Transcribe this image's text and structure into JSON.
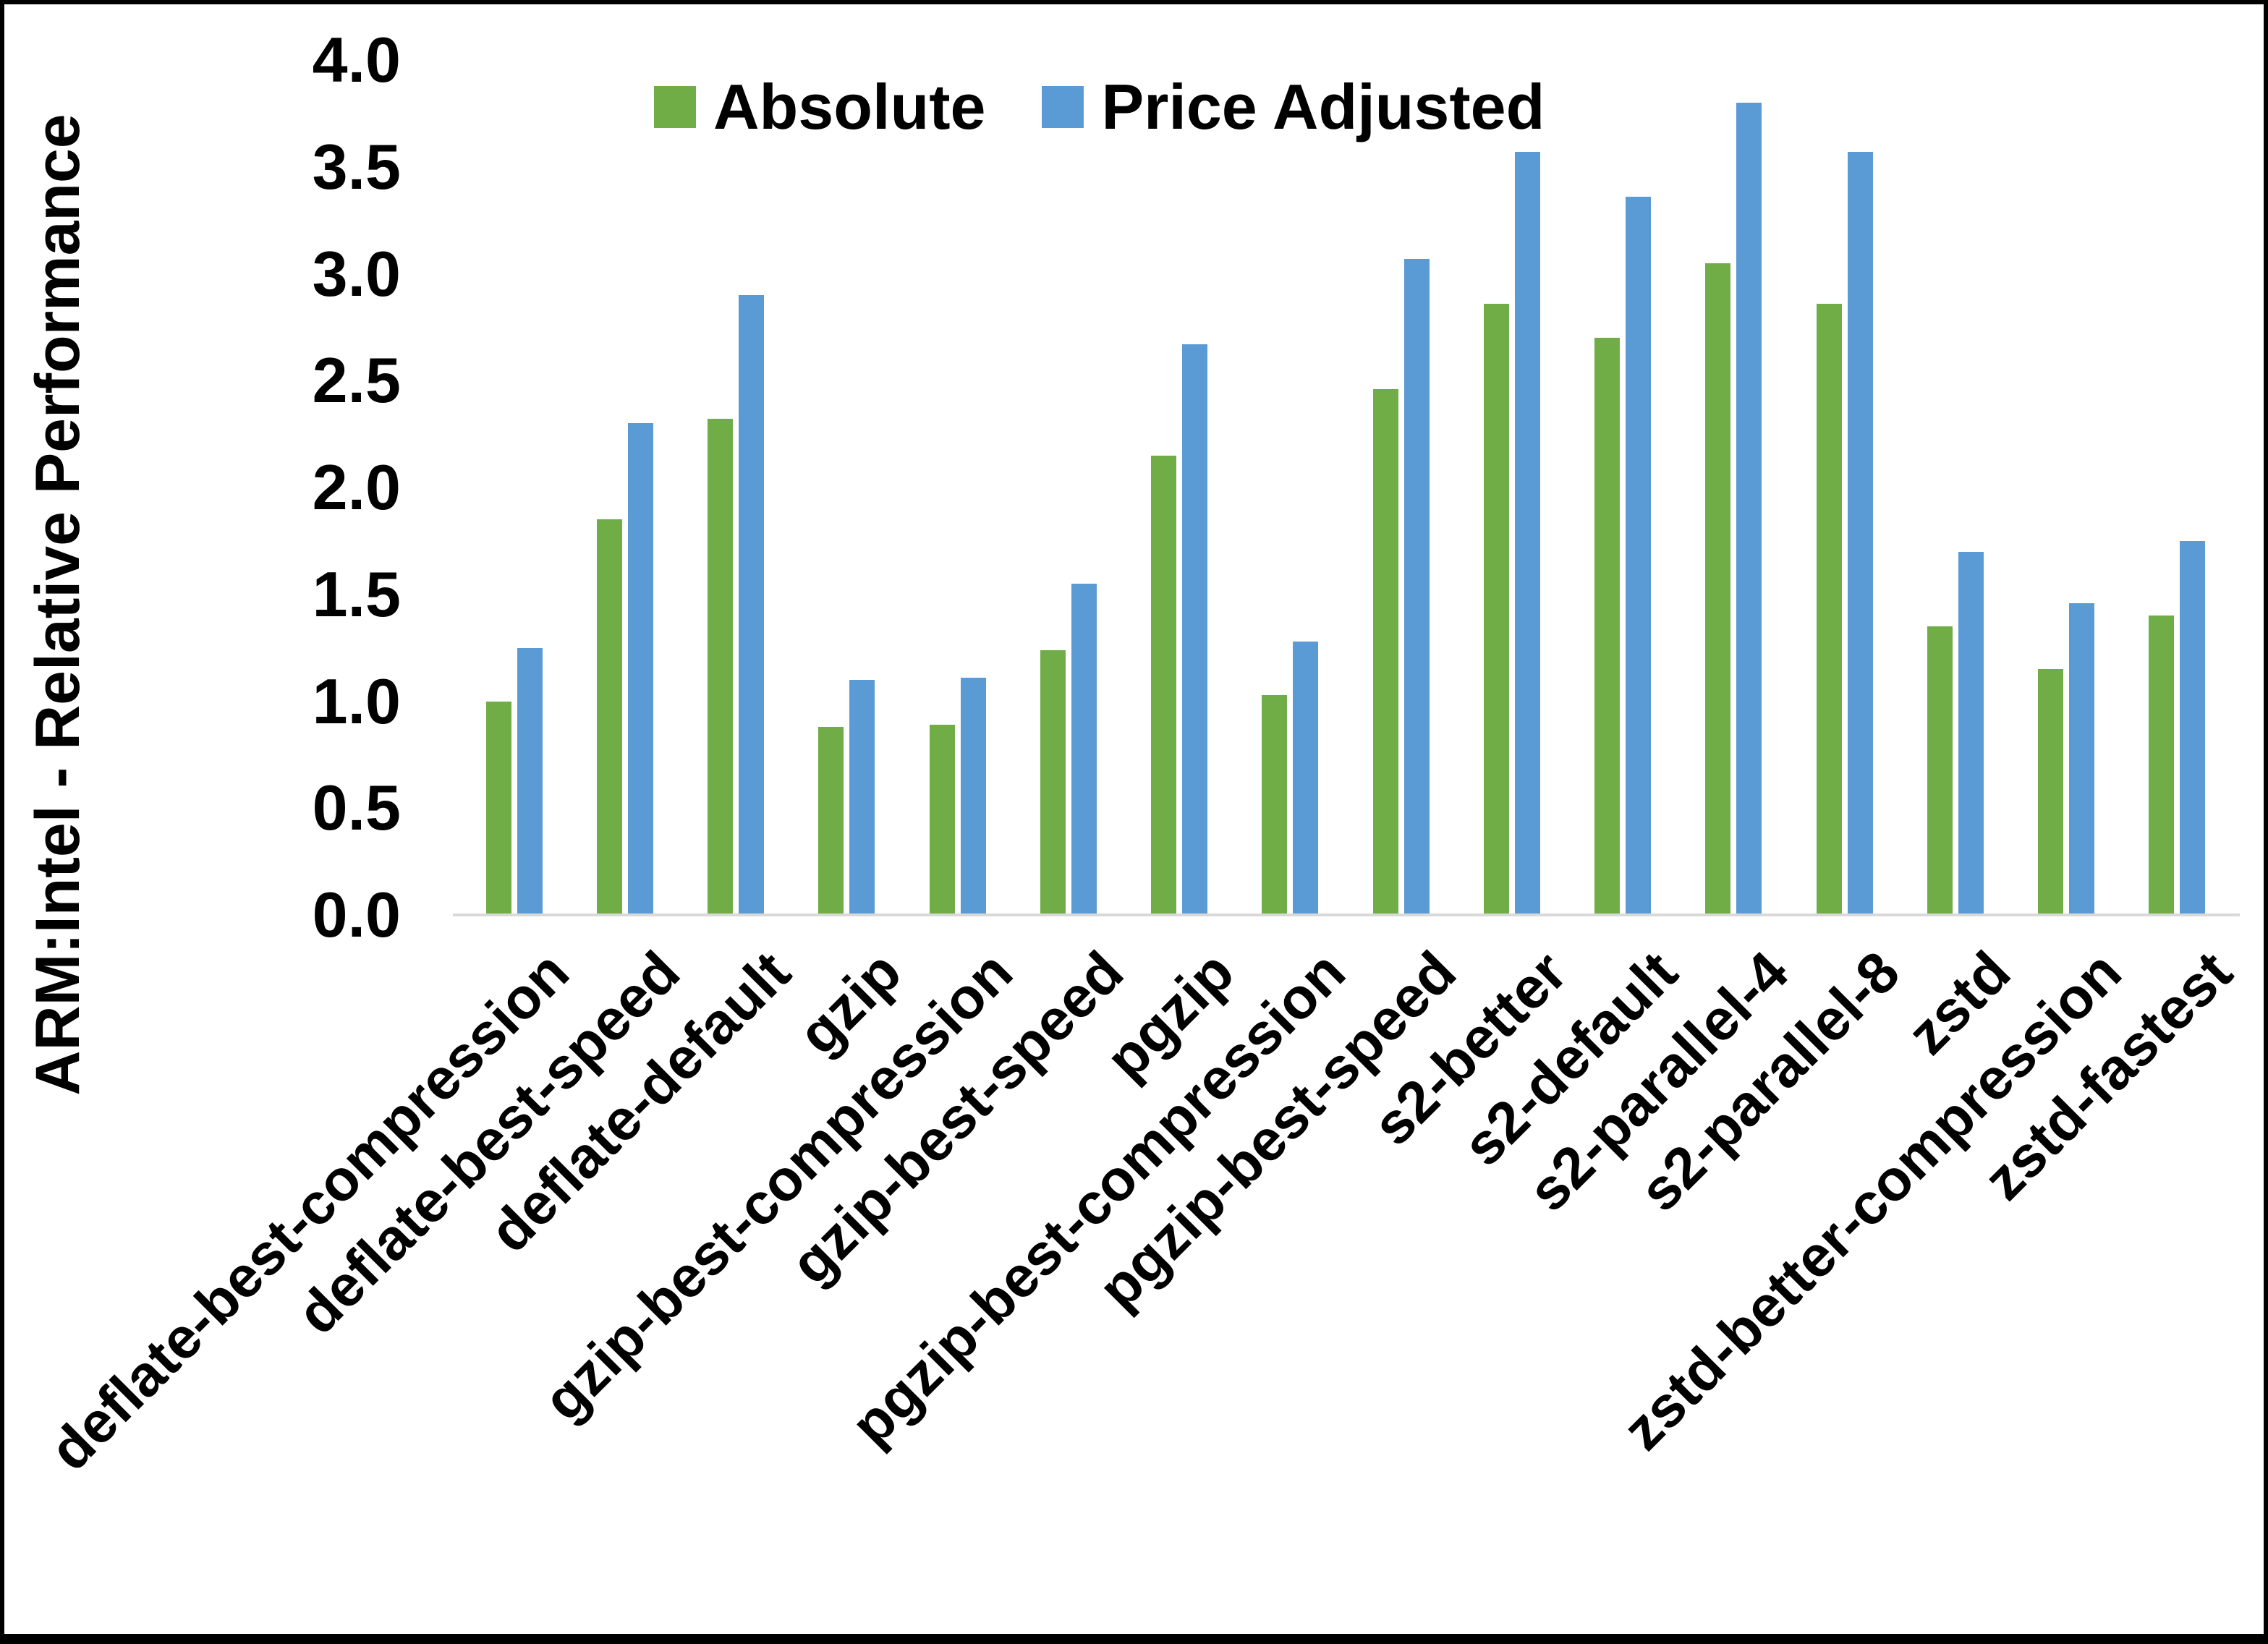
{
  "chart_data": {
    "type": "bar",
    "title": "",
    "xlabel": "",
    "ylabel": "ARM:Intel - Relative Performance",
    "ylim": [
      0,
      4.0
    ],
    "ytick_step": 0.5,
    "yticks": [
      "4.0",
      "3.5",
      "3.0",
      "2.5",
      "2.0",
      "1.5",
      "1.0",
      "0.5",
      "0.0"
    ],
    "grid": false,
    "legend_position": "top-center",
    "x_label_rotation_deg": 45,
    "axis_line_color": "#d9d9d9",
    "categories": [
      "deflate-best-compression",
      "deflate-best-speed",
      "deflate-default",
      "gzip",
      "gzip-best-compression",
      "gzip-best-speed",
      "pgzip",
      "pgzip-best-compression",
      "pgzip-best-speed",
      "s2-better",
      "s2-default",
      "s2-parallel-4",
      "s2-parallel-8",
      "zstd",
      "zstd-better-compression",
      "zstd-fastest"
    ],
    "series": [
      {
        "name": "Absolute",
        "color": "#70AD47",
        "values": [
          1.0,
          1.85,
          2.32,
          0.88,
          0.89,
          1.24,
          2.15,
          1.03,
          2.46,
          2.86,
          2.7,
          3.05,
          2.86,
          1.35,
          1.15,
          1.4
        ]
      },
      {
        "name": "Price Adjusted",
        "color": "#5B9BD5",
        "values": [
          1.25,
          2.3,
          2.9,
          1.1,
          1.11,
          1.55,
          2.67,
          1.28,
          3.07,
          3.57,
          3.36,
          3.8,
          3.57,
          1.7,
          1.46,
          1.75
        ]
      }
    ]
  }
}
